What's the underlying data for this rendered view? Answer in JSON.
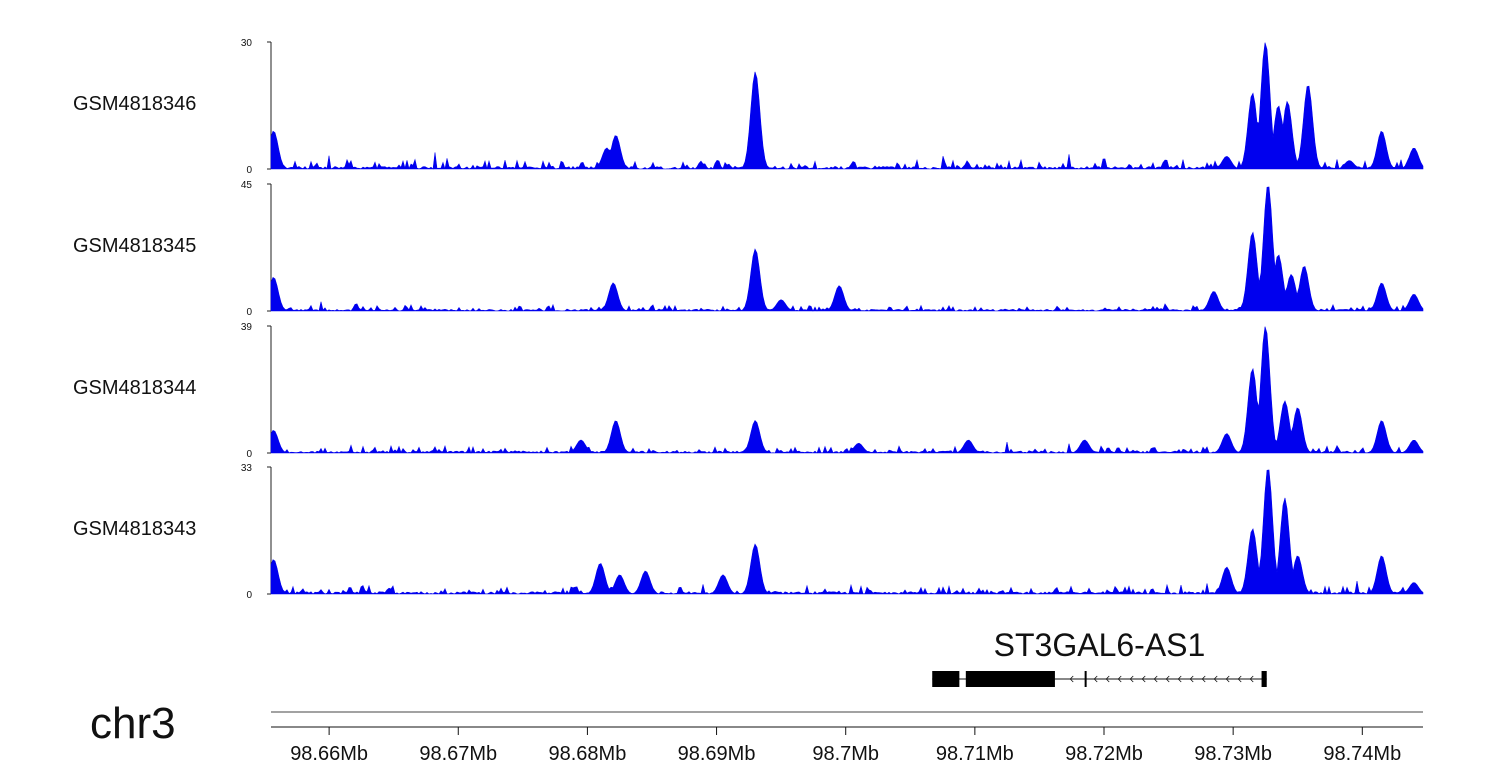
{
  "chart_data": {
    "type": "area",
    "chromosome": "chr3",
    "x_unit": "Mb",
    "xlim": [
      98.6555,
      98.7447
    ],
    "x_ticks": [
      98.66,
      98.67,
      98.68,
      98.69,
      98.7,
      98.71,
      98.72,
      98.73,
      98.74
    ],
    "x_tick_labels": [
      "98.66Mb",
      "98.67Mb",
      "98.68Mb",
      "98.69Mb",
      "98.7Mb",
      "98.71Mb",
      "98.72Mb",
      "98.73Mb",
      "98.74Mb"
    ],
    "color": "#0000ee",
    "tracks": [
      {
        "name": "GSM4818346",
        "ymax": 30,
        "ymax_label": "30",
        "ymin_label": "0",
        "peaks": [
          [
            98.6557,
            9
          ],
          [
            98.6815,
            5
          ],
          [
            98.6822,
            8
          ],
          [
            98.693,
            23
          ],
          [
            98.7295,
            3
          ],
          [
            98.7315,
            18
          ],
          [
            98.7325,
            30
          ],
          [
            98.7335,
            15
          ],
          [
            98.7342,
            16
          ],
          [
            98.7358,
            20
          ],
          [
            98.739,
            2
          ],
          [
            98.7415,
            9
          ],
          [
            98.744,
            5
          ]
        ]
      },
      {
        "name": "GSM4818345",
        "ymax": 45,
        "ymax_label": "45",
        "ymin_label": "0",
        "peaks": [
          [
            98.6557,
            12
          ],
          [
            98.682,
            10
          ],
          [
            98.693,
            22
          ],
          [
            98.695,
            4
          ],
          [
            98.6995,
            9
          ],
          [
            98.7285,
            7
          ],
          [
            98.7315,
            28
          ],
          [
            98.7327,
            45
          ],
          [
            98.7335,
            20
          ],
          [
            98.7345,
            13
          ],
          [
            98.7355,
            16
          ],
          [
            98.7415,
            10
          ],
          [
            98.744,
            6
          ]
        ]
      },
      {
        "name": "GSM4818344",
        "ymax": 39,
        "ymax_label": "39",
        "ymin_label": "0",
        "peaks": [
          [
            98.6557,
            7
          ],
          [
            98.6795,
            4
          ],
          [
            98.6822,
            10
          ],
          [
            98.693,
            10
          ],
          [
            98.701,
            3
          ],
          [
            98.7095,
            4
          ],
          [
            98.7185,
            4
          ],
          [
            98.7295,
            6
          ],
          [
            98.7315,
            26
          ],
          [
            98.7325,
            39
          ],
          [
            98.734,
            16
          ],
          [
            98.735,
            14
          ],
          [
            98.7415,
            10
          ],
          [
            98.744,
            4
          ]
        ]
      },
      {
        "name": "GSM4818343",
        "ymax": 33,
        "ymax_label": "33",
        "ymin_label": "0",
        "peaks": [
          [
            98.6557,
            9
          ],
          [
            98.681,
            8
          ],
          [
            98.6825,
            5
          ],
          [
            98.6845,
            6
          ],
          [
            98.6905,
            5
          ],
          [
            98.693,
            13
          ],
          [
            98.7295,
            7
          ],
          [
            98.7315,
            17
          ],
          [
            98.7327,
            33
          ],
          [
            98.734,
            25
          ],
          [
            98.735,
            10
          ],
          [
            98.7415,
            10
          ],
          [
            98.744,
            3
          ]
        ]
      }
    ],
    "gene": {
      "name": "ST3GAL6-AS1",
      "start": 98.7067,
      "end": 98.7326,
      "strand": "-",
      "exons": [
        [
          98.7067,
          98.7088
        ],
        [
          98.7093,
          98.7162
        ],
        [
          98.7185,
          98.7186
        ],
        [
          98.7322,
          98.7326
        ]
      ]
    }
  }
}
